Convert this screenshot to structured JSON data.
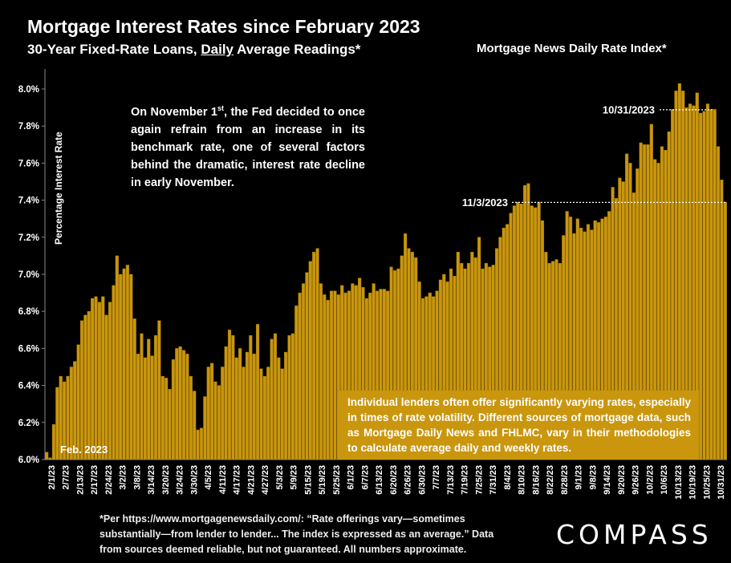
{
  "header": {
    "title": "Mortgage Interest Rates since February 2023",
    "subtitle_pre": "30-Year Fixed-Rate Loans, ",
    "subtitle_underlined": "Daily",
    "subtitle_post": " Average Readings*",
    "source": "Mortgage News Daily Rate Index*"
  },
  "notes": {
    "fed_note_pre": "On November 1",
    "fed_note_sup": "st",
    "fed_note_post": ", the Fed decided to once again refrain from an increase in its benchmark rate, one of several factors behind the dramatic, interest rate decline in early November.",
    "lenders_note": "Individual lenders often offer significantly varying rates, especially in times of rate volatility. Different sources of mortgage data, such as Mortgage Daily News and FHLMC, vary in their methodologies to calculate average daily and weekly rates.",
    "feb_label": "Feb. 2023",
    "footnote": "*Per https://www.mortgagenewsdaily.com/: “Rate offerings vary—sometimes substantially—from lender to lender... The index is expressed as an average.” Data from sources deemed reliable, but not guaranteed. All numbers approximate."
  },
  "brand": {
    "logo": "COMPASS"
  },
  "colors": {
    "bar": "#c9960e",
    "bar_edge": "#9c7206",
    "background": "#000000",
    "text": "#ffffff"
  },
  "chart_data": {
    "type": "bar",
    "title": "Mortgage Interest Rates since February 2023",
    "ylabel": "Percentage Interest Rate",
    "ylim": [
      6.0,
      8.1
    ],
    "y_ticks": [
      "6.0%",
      "6.2%",
      "6.4%",
      "6.6%",
      "6.8%",
      "7.0%",
      "7.2%",
      "7.4%",
      "7.6%",
      "7.8%",
      "8.0%"
    ],
    "x_tick_labels": [
      "2/1/23",
      "2/7/23",
      "2/13/23",
      "2/17/23",
      "2/24/23",
      "3/2/23",
      "3/8/23",
      "3/14/23",
      "3/20/23",
      "3/24/23",
      "3/30/23",
      "4/5/23",
      "4/11/23",
      "4/17/23",
      "4/21/23",
      "4/27/23",
      "5/3/23",
      "5/9/23",
      "5/15/23",
      "5/19/23",
      "5/25/23",
      "6/1/23",
      "6/7/23",
      "6/13/23",
      "6/20/23",
      "6/26/23",
      "6/30/23",
      "7/7/23",
      "7/13/23",
      "7/19/23",
      "7/25/23",
      "7/31/23",
      "8/4/23",
      "8/10/23",
      "8/16/23",
      "8/22/23",
      "8/28/23",
      "9/1/23",
      "9/8/23",
      "9/14/23",
      "9/20/23",
      "9/26/23",
      "10/2/23",
      "10/6/23",
      "10/13/23",
      "10/19/23",
      "10/25/23",
      "10/31/23"
    ],
    "values": [
      6.04,
      6.01,
      6.19,
      6.39,
      6.45,
      6.42,
      6.45,
      6.5,
      6.53,
      6.62,
      6.75,
      6.78,
      6.8,
      6.87,
      6.88,
      6.85,
      6.88,
      6.78,
      6.85,
      6.94,
      7.1,
      7.0,
      7.03,
      7.05,
      7.0,
      6.76,
      6.57,
      6.68,
      6.55,
      6.65,
      6.56,
      6.67,
      6.75,
      6.45,
      6.44,
      6.38,
      6.54,
      6.6,
      6.61,
      6.59,
      6.57,
      6.45,
      6.37,
      6.16,
      6.17,
      6.34,
      6.5,
      6.52,
      6.42,
      6.4,
      6.5,
      6.61,
      6.7,
      6.67,
      6.55,
      6.6,
      6.5,
      6.58,
      6.67,
      6.57,
      6.73,
      6.49,
      6.45,
      6.5,
      6.65,
      6.68,
      6.55,
      6.49,
      6.58,
      6.67,
      6.68,
      6.83,
      6.9,
      6.95,
      7.01,
      7.07,
      7.12,
      7.14,
      6.95,
      6.89,
      6.86,
      6.91,
      6.91,
      6.89,
      6.94,
      6.9,
      6.91,
      6.95,
      6.94,
      6.98,
      6.93,
      6.87,
      6.9,
      6.95,
      6.91,
      6.92,
      6.92,
      6.91,
      7.04,
      7.02,
      7.03,
      7.1,
      7.22,
      7.14,
      7.12,
      7.09,
      6.96,
      6.87,
      6.88,
      6.9,
      6.88,
      6.91,
      6.97,
      7.0,
      6.96,
      7.03,
      6.99,
      7.12,
      7.06,
      7.03,
      7.06,
      7.12,
      7.09,
      7.2,
      7.03,
      7.06,
      7.04,
      7.05,
      7.14,
      7.2,
      7.25,
      7.27,
      7.33,
      7.37,
      7.39,
      7.38,
      7.48,
      7.49,
      7.37,
      7.36,
      7.39,
      7.29,
      7.12,
      7.06,
      7.07,
      7.08,
      7.06,
      7.21,
      7.34,
      7.31,
      7.22,
      7.3,
      7.25,
      7.23,
      7.27,
      7.24,
      7.29,
      7.28,
      7.3,
      7.31,
      7.34,
      7.47,
      7.41,
      7.52,
      7.5,
      7.65,
      7.6,
      7.44,
      7.57,
      7.71,
      7.7,
      7.7,
      7.81,
      7.62,
      7.6,
      7.69,
      7.67,
      7.77,
      7.89,
      7.99,
      8.03,
      7.99,
      7.9,
      7.92,
      7.91,
      7.98,
      7.87,
      7.88,
      7.92,
      7.89,
      7.89,
      7.69,
      7.51,
      7.39
    ],
    "annotations": [
      {
        "label": "10/31/2023",
        "value": 7.89
      },
      {
        "label": "11/3/2023",
        "value": 7.39
      }
    ],
    "grid": false
  }
}
